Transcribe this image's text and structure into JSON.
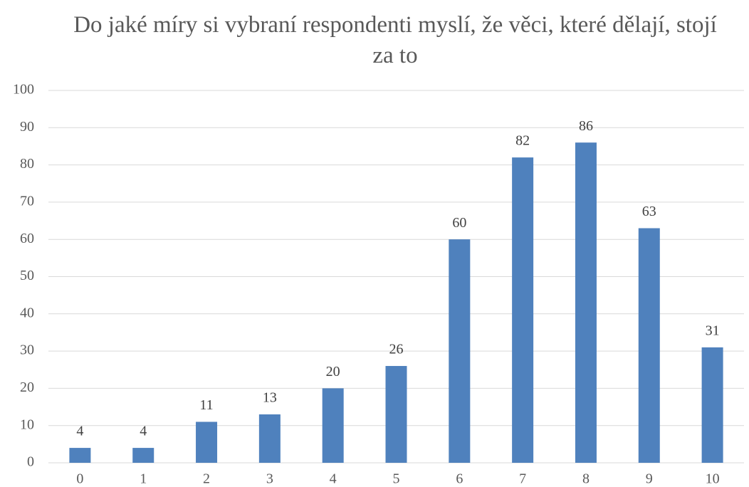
{
  "chart_data": {
    "type": "bar",
    "title": "Do jaké míry si vybraní respondenti myslí, že věci, které dělají, stojí za to",
    "categories": [
      "0",
      "1",
      "2",
      "3",
      "4",
      "5",
      "6",
      "7",
      "8",
      "9",
      "10"
    ],
    "values": [
      4,
      4,
      11,
      13,
      20,
      26,
      60,
      82,
      86,
      63,
      31
    ],
    "color": "#4f81bd",
    "ylim": [
      0,
      100
    ],
    "yticks": [
      0,
      10,
      20,
      30,
      40,
      50,
      60,
      70,
      80,
      90,
      100
    ],
    "grid": true
  }
}
